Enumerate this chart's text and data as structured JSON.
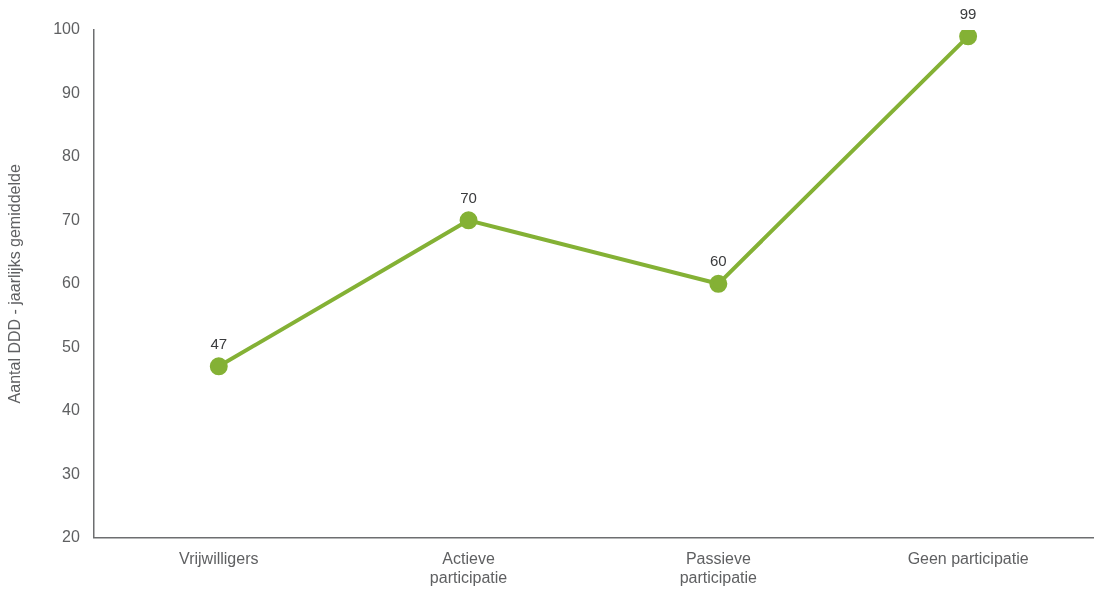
{
  "chart_data": {
    "type": "line",
    "ylabel": "Aantal DDD - jaarlijks gemiddelde",
    "categories": [
      "Vrijwilligers",
      "Actieve participatie",
      "Passieve participatie",
      "Geen participatie"
    ],
    "values": [
      47,
      70,
      60,
      99
    ],
    "color": "#84b135",
    "ylim": [
      20,
      100
    ],
    "yticks": [
      20,
      30,
      40,
      50,
      60,
      70,
      80,
      90,
      100
    ],
    "marker": "circle",
    "data_labels": true
  }
}
